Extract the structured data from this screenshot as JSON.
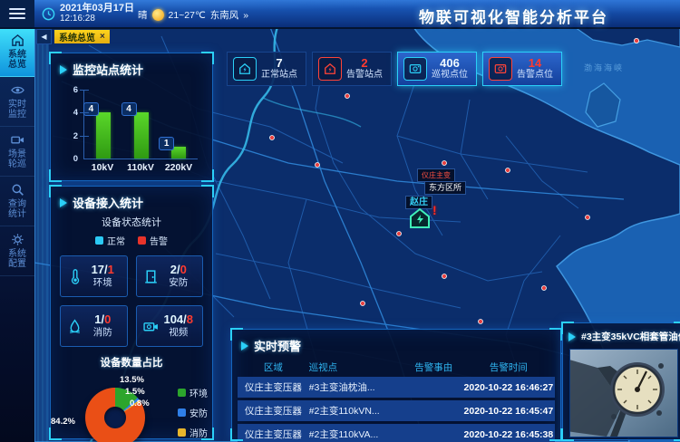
{
  "header": {
    "title": "物联可视化智能分析平台",
    "date": "2021年03月17日",
    "time": "12:16:28",
    "weather": {
      "condition": "晴",
      "temp_range": "21~27℃",
      "wind": "东南风",
      "more": "»"
    }
  },
  "tab_bar": {
    "back": "◀",
    "active_tab": "系统总览",
    "close": "×"
  },
  "sidebar": {
    "items": [
      {
        "label": "系统总览",
        "icon": "home-icon",
        "active": true
      },
      {
        "label": "实时监控",
        "icon": "eye-icon",
        "active": false
      },
      {
        "label": "场景轮巡",
        "icon": "video-icon",
        "active": false
      },
      {
        "label": "查询统计",
        "icon": "search-icon",
        "active": false
      },
      {
        "label": "系统配置",
        "icon": "gear-icon",
        "active": false
      }
    ]
  },
  "stats": {
    "items": [
      {
        "label": "正常站点",
        "value": "7",
        "icon": "station-icon",
        "color": "cyan",
        "highlight": false
      },
      {
        "label": "告警站点",
        "value": "2",
        "icon": "station-icon",
        "color": "red",
        "highlight": false
      },
      {
        "label": "巡视点位",
        "value": "406",
        "icon": "patrol-icon",
        "color": "cyan",
        "highlight": true
      },
      {
        "label": "告警点位",
        "value": "14",
        "icon": "patrol-icon",
        "color": "red",
        "highlight": true
      }
    ]
  },
  "chart_data": [
    {
      "type": "bar",
      "title": "监控站点统计",
      "categories": [
        "10kV",
        "110kV",
        "220kV"
      ],
      "values": [
        4,
        4,
        1
      ],
      "xlabel": "",
      "ylabel": "",
      "ylim": [
        0,
        6
      ],
      "yticks": [
        0,
        2,
        4,
        6
      ],
      "bar_color": "#3fb818",
      "grid": false,
      "legend_position": "none"
    },
    {
      "type": "pie",
      "title": "设备数量占比",
      "labels": [
        "环境",
        "安防",
        "消防",
        "视频"
      ],
      "values": [
        13.5,
        1.5,
        0.8,
        84.2
      ],
      "unit": "%",
      "colors": [
        "#2ca52c",
        "#2f7fe8",
        "#e8b62c",
        "#ea4f16"
      ],
      "legend_position": "right"
    }
  ],
  "device_panel": {
    "title": "设备接入统计",
    "subtitle": "设备状态统计",
    "legend": [
      {
        "label": "正常",
        "color": "#2bc9f4"
      },
      {
        "label": "告警",
        "color": "#e8332a"
      }
    ],
    "cards": [
      {
        "label": "环境",
        "normal": "17",
        "alarm": "1",
        "icon": "thermometer-icon"
      },
      {
        "label": "安防",
        "normal": "2",
        "alarm": "0",
        "icon": "door-icon"
      },
      {
        "label": "消防",
        "normal": "1",
        "alarm": "0",
        "icon": "droplet-icon"
      },
      {
        "label": "视频",
        "normal": "104",
        "alarm": "8",
        "icon": "camera-icon"
      }
    ]
  },
  "alerts": {
    "title": "实时预警",
    "columns": [
      "区域",
      "巡视点",
      "告警事由",
      "告警时间"
    ],
    "rows": [
      [
        "仪庄主变压器",
        "#3主变油枕油...",
        "",
        "2020-10-22 16:46:27"
      ],
      [
        "仪庄主变压器",
        "#2主变110kVN...",
        "",
        "2020-10-22 16:45:47"
      ],
      [
        "仪庄主变压器",
        "#2主变110kVA...",
        "",
        "2020-10-22 16:45:38"
      ]
    ]
  },
  "camera_panel": {
    "title": "#3主变35kVC相套管油位"
  },
  "map": {
    "sea_label": "渤海海峡",
    "labels": {
      "alarm": "仪庄主变",
      "office": "东方区所",
      "station": "赵庄"
    },
    "alert_mark": "!"
  }
}
